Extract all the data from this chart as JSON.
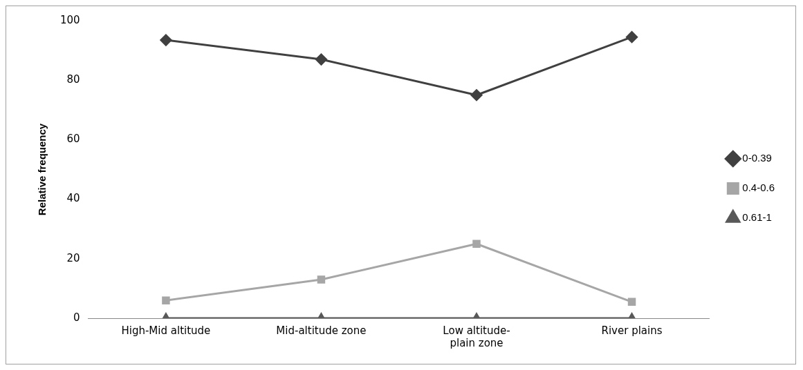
{
  "chart_data": {
    "type": "line",
    "ylabel": "Relative frequency",
    "categories": [
      "High-Mid altitude",
      "Mid-altitude zone",
      "Low altitude-plain zone",
      "River plains"
    ],
    "series": [
      {
        "name": "0-0.39",
        "color": "#404040",
        "marker": "diamond",
        "values": [
          93.5,
          87,
          75,
          94.5
        ]
      },
      {
        "name": "0.4-0.6",
        "color": "#a6a6a6",
        "marker": "square",
        "values": [
          6,
          13,
          25,
          5.5
        ]
      },
      {
        "name": "0.61-1",
        "color": "#595959",
        "marker": "triangle",
        "values": [
          0,
          0,
          0,
          0
        ]
      }
    ],
    "ylim": [
      0,
      100
    ],
    "yticks": [
      0,
      20,
      40,
      60,
      80,
      100
    ],
    "grid": false,
    "legend": "right",
    "line_style": "solid"
  }
}
